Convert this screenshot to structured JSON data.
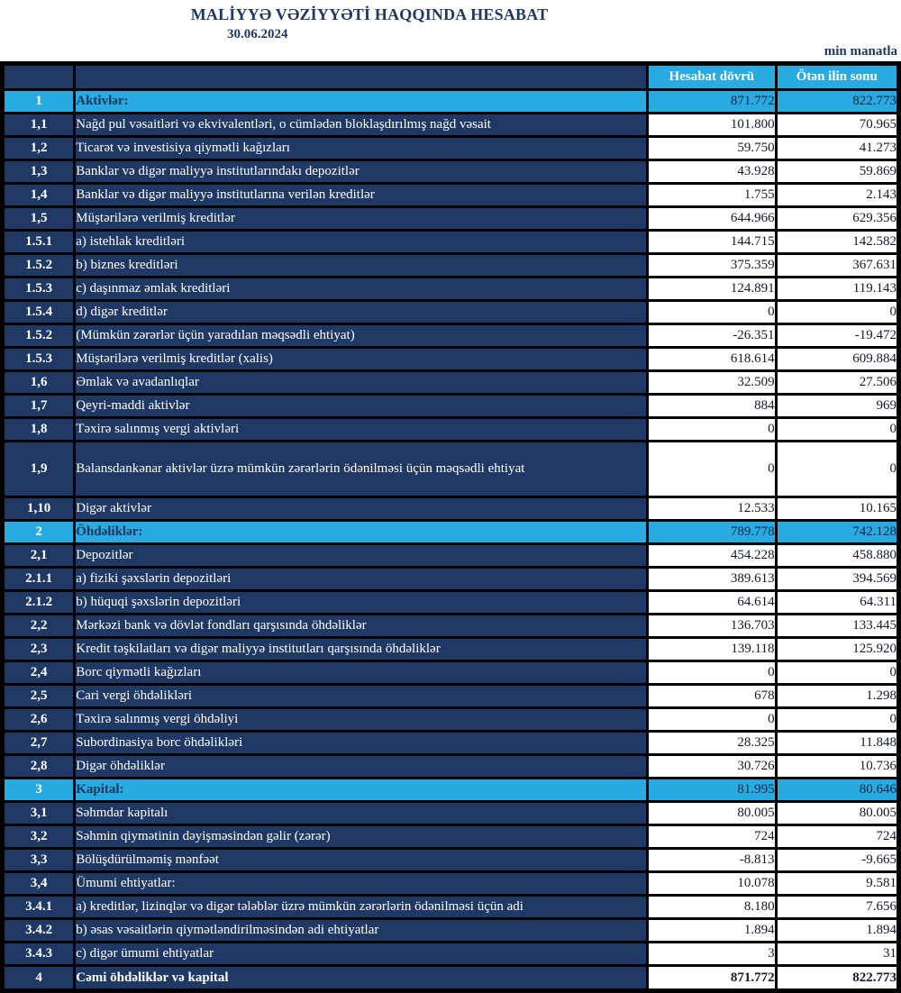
{
  "page": {
    "title": "MALİYYƏ VƏZİYYƏTİ HAQQINDA HESABAT",
    "date": "30.06.2024",
    "unit_note": "min manatla"
  },
  "colors": {
    "navy_row": "#1F3864",
    "light_blue_row": "#29ABE2",
    "title_text": "#1F3864",
    "border": "#000000",
    "value_cell_bg": "#FFFFFF"
  },
  "table": {
    "col_headers": {
      "period": "Hesabat dövrü",
      "previous": "Ötən ilin sonu"
    },
    "rows": [
      {
        "type": "section",
        "num": "1",
        "label": "Aktivlər:",
        "period": "871.772",
        "prev": "822.773"
      },
      {
        "type": "normal",
        "num": "1,1",
        "label": "Nağd pul vəsaitləri və  ekvivalentləri, o cümlədən bloklaşdırılmış nağd vəsait",
        "period": "101.800",
        "prev": "70.965"
      },
      {
        "type": "normal",
        "num": "1,2",
        "label": "Ticarət və investisiya qiymətli kağızları",
        "period": "59.750",
        "prev": "41.273"
      },
      {
        "type": "normal",
        "num": "1,3",
        "label": "Banklar və digər maliyyə institutlarındakı depozitlər",
        "period": "43.928",
        "prev": "59.869"
      },
      {
        "type": "normal",
        "num": "1,4",
        "label": "Banklar və digər maliyyə institutlarına verilən kreditlər",
        "period": "1.755",
        "prev": "2.143"
      },
      {
        "type": "normal",
        "num": "1,5",
        "label": "Müştərilərə verilmiş kreditlər",
        "period": "644.966",
        "prev": "629.356"
      },
      {
        "type": "normal",
        "num": "1.5.1",
        "label": "a) istehlak kreditləri",
        "period": "144.715",
        "prev": "142.582"
      },
      {
        "type": "normal",
        "num": "1.5.2",
        "label": "b) biznes kreditləri",
        "period": "375.359",
        "prev": "367.631"
      },
      {
        "type": "normal",
        "num": "1.5.3",
        "label": "c) daşınmaz əmlak kreditləri",
        "period": "124.891",
        "prev": "119.143"
      },
      {
        "type": "normal",
        "num": "1.5.4",
        "label": "d) digər kreditlər",
        "period": "0",
        "prev": "0"
      },
      {
        "type": "normal",
        "num": "1.5.2",
        "label": "(Mümkün zərərlər üçün yaradılan məqsədli ehtiyat)",
        "period": "-26.351",
        "prev": "-19.472"
      },
      {
        "type": "normal",
        "num": "1.5.3",
        "label": "Müştərilərə verilmiş kreditlər (xalis)",
        "period": "618.614",
        "prev": "609.884"
      },
      {
        "type": "normal",
        "num": "1,6",
        "label": "Əmlak və avadanlıqlar",
        "period": "32.509",
        "prev": "27.506"
      },
      {
        "type": "normal",
        "num": "1,7",
        "label": "Qeyri-maddi aktivlər",
        "period": "884",
        "prev": "969"
      },
      {
        "type": "normal",
        "num": "1,8",
        "label": "Təxirə salınmış vergi aktivləri",
        "period": "0",
        "prev": "0"
      },
      {
        "type": "normal",
        "num": "1,9",
        "label": "Balansdankənar aktivlər üzrə mümkün zərərlərin ödənilməsi üçün məqsədli ehtiyat",
        "period": "0",
        "prev": "0",
        "tall": true
      },
      {
        "type": "normal",
        "num": "1,10",
        "label": "Digər aktivlər",
        "period": "12.533",
        "prev": "10.165"
      },
      {
        "type": "section",
        "num": "2",
        "label": "Öhdəliklər:",
        "period": "789.778",
        "prev": "742.128"
      },
      {
        "type": "normal",
        "num": "2,1",
        "label": "Depozitlər",
        "period": "454.228",
        "prev": "458.880"
      },
      {
        "type": "normal",
        "num": "2.1.1",
        "label": "a) fiziki şəxslərin depozitləri",
        "period": "389.613",
        "prev": "394.569"
      },
      {
        "type": "normal",
        "num": "2.1.2",
        "label": "b) hüquqi şəxslərin depozitləri",
        "period": "64.614",
        "prev": "64.311"
      },
      {
        "type": "normal",
        "num": "2,2",
        "label": "Mərkəzi bank və dövlət fondları qarşısında öhdəliklər",
        "period": "136.703",
        "prev": "133.445"
      },
      {
        "type": "normal",
        "num": "2,3",
        "label": "Kredit təşkilatları və digər maliyyə institutları qarşısında öhdəliklər",
        "period": "139.118",
        "prev": "125.920"
      },
      {
        "type": "normal",
        "num": "2,4",
        "label": "Borc qiymətli kağızları",
        "period": "0",
        "prev": "0"
      },
      {
        "type": "normal",
        "num": "2,5",
        "label": "Cari vergi öhdəlikləri",
        "period": "678",
        "prev": "1.298"
      },
      {
        "type": "normal",
        "num": "2,6",
        "label": "Təxirə salınmış vergi öhdəliyi",
        "period": "0",
        "prev": "0"
      },
      {
        "type": "normal",
        "num": "2,7",
        "label": "Subordinasiya borc öhdəlikləri",
        "period": "28.325",
        "prev": "11.848"
      },
      {
        "type": "normal",
        "num": "2,8",
        "label": "Digər öhdəliklər",
        "period": "30.726",
        "prev": "10.736"
      },
      {
        "type": "section",
        "num": "3",
        "label": "Kapital:",
        "period": "81.995",
        "prev": "80.646"
      },
      {
        "type": "normal",
        "num": "3,1",
        "label": "Səhmdar kapitalı",
        "period": "80.005",
        "prev": "80.005"
      },
      {
        "type": "normal",
        "num": "3,2",
        "label": "Səhmin qiymətinin dəyişməsindən gəlir (zərər)",
        "period": "724",
        "prev": "724"
      },
      {
        "type": "normal",
        "num": "3,3",
        "label": "Bölüşdürülməmiş mənfəət",
        "period": "-8.813",
        "prev": "-9.665"
      },
      {
        "type": "normal",
        "num": "3,4",
        "label": "Ümumi ehtiyatlar:",
        "period": "10.078",
        "prev": "9.581"
      },
      {
        "type": "normal",
        "num": "3.4.1",
        "label": "a) kreditlər, lizinqlər və digər tələblər üzrə mümkün zərərlərin ödənilməsi üçün adi",
        "period": "8.180",
        "prev": "7.656"
      },
      {
        "type": "normal",
        "num": "3.4.2",
        "label": "b) əsas vəsaitlərin qiymətləndirilməsindən adi ehtiyatlar",
        "period": "1.894",
        "prev": "1.894"
      },
      {
        "type": "normal",
        "num": "3.4.3",
        "label": "c) digər ümumi ehtiyatlar",
        "period": "3",
        "prev": "31"
      },
      {
        "type": "total",
        "num": "4",
        "label": "Cəmi öhdəliklər və kapital",
        "period": "871.772",
        "prev": "822.773"
      }
    ]
  }
}
